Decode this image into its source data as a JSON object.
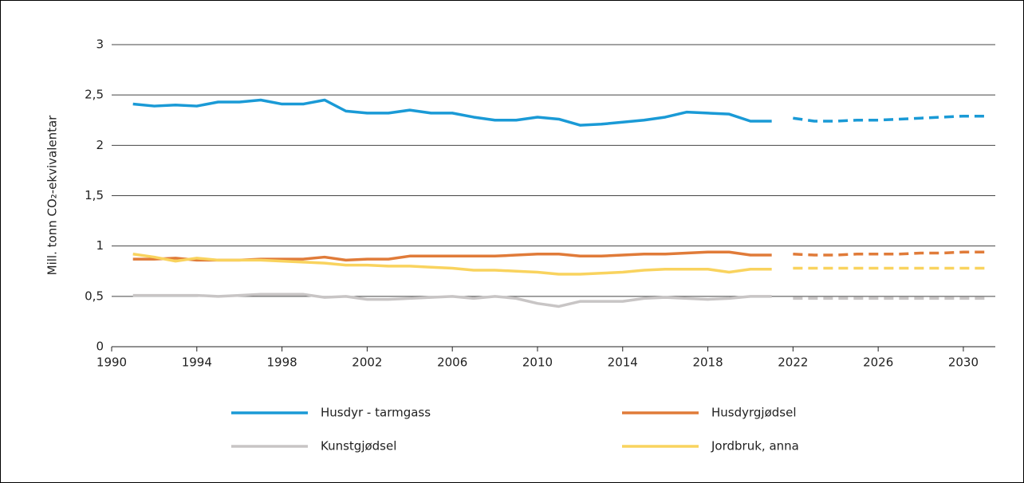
{
  "chart_data": {
    "type": "line",
    "ylabel": "Mill. tonn CO₂-ekvivalentar",
    "x": [
      1991,
      1992,
      1993,
      1994,
      1995,
      1996,
      1997,
      1998,
      1999,
      2000,
      2001,
      2002,
      2003,
      2004,
      2005,
      2006,
      2007,
      2008,
      2009,
      2010,
      2011,
      2012,
      2013,
      2014,
      2015,
      2016,
      2017,
      2018,
      2019,
      2020,
      2021,
      2022,
      2023,
      2024,
      2025,
      2026,
      2027,
      2028,
      2029,
      2030,
      2031
    ],
    "xlim": [
      1990,
      2031.5
    ],
    "xticks": [
      1990,
      1994,
      1998,
      2002,
      2006,
      2010,
      2014,
      2018,
      2022,
      2026,
      2030
    ],
    "ylim": [
      0,
      3
    ],
    "yticks": [
      0,
      {
        "value": 0.5,
        "label": "0,5"
      },
      1,
      {
        "value": 1.5,
        "label": "1,5"
      },
      2,
      {
        "value": 2.5,
        "label": "2,5"
      },
      3
    ],
    "grid": true,
    "legend": "bottom",
    "series": [
      {
        "name": "Husdyr - tarmgass",
        "color": "#1a9ad6",
        "values": [
          2.41,
          2.39,
          2.4,
          2.39,
          2.43,
          2.43,
          2.45,
          2.41,
          2.41,
          2.45,
          2.34,
          2.32,
          2.32,
          2.35,
          2.32,
          2.32,
          2.28,
          2.25,
          2.25,
          2.28,
          2.26,
          2.2,
          2.21,
          2.23,
          2.25,
          2.28,
          2.33,
          2.32,
          2.31,
          2.24,
          2.24,
          null,
          null,
          null,
          null,
          null,
          null,
          null,
          null,
          null,
          null
        ],
        "projected_values": [
          null,
          null,
          null,
          null,
          null,
          null,
          null,
          null,
          null,
          null,
          null,
          null,
          null,
          null,
          null,
          null,
          null,
          null,
          null,
          null,
          null,
          null,
          null,
          null,
          null,
          null,
          null,
          null,
          null,
          null,
          null,
          2.27,
          2.24,
          2.24,
          2.25,
          2.25,
          2.26,
          2.27,
          2.28,
          2.29,
          2.29
        ]
      },
      {
        "name": "Husdyrgjødsel",
        "color": "#e07b39",
        "values": [
          0.87,
          0.87,
          0.88,
          0.86,
          0.86,
          0.86,
          0.87,
          0.87,
          0.87,
          0.89,
          0.86,
          0.87,
          0.87,
          0.9,
          0.9,
          0.9,
          0.9,
          0.9,
          0.91,
          0.92,
          0.92,
          0.9,
          0.9,
          0.91,
          0.92,
          0.92,
          0.93,
          0.94,
          0.94,
          0.91,
          0.91,
          null,
          null,
          null,
          null,
          null,
          null,
          null,
          null,
          null,
          null
        ],
        "projected_values": [
          null,
          null,
          null,
          null,
          null,
          null,
          null,
          null,
          null,
          null,
          null,
          null,
          null,
          null,
          null,
          null,
          null,
          null,
          null,
          null,
          null,
          null,
          null,
          null,
          null,
          null,
          null,
          null,
          null,
          null,
          null,
          0.92,
          0.91,
          0.91,
          0.92,
          0.92,
          0.92,
          0.93,
          0.93,
          0.94,
          0.94
        ]
      },
      {
        "name": "Kunstgjødsel",
        "color": "#c8c5c5",
        "values": [
          0.51,
          0.51,
          0.51,
          0.51,
          0.5,
          0.51,
          0.52,
          0.52,
          0.52,
          0.49,
          0.5,
          0.47,
          0.47,
          0.48,
          0.49,
          0.5,
          0.48,
          0.5,
          0.48,
          0.43,
          0.4,
          0.45,
          0.45,
          0.45,
          0.48,
          0.49,
          0.48,
          0.47,
          0.48,
          0.5,
          0.5,
          null,
          null,
          null,
          null,
          null,
          null,
          null,
          null,
          null,
          null
        ],
        "projected_values": [
          null,
          null,
          null,
          null,
          null,
          null,
          null,
          null,
          null,
          null,
          null,
          null,
          null,
          null,
          null,
          null,
          null,
          null,
          null,
          null,
          null,
          null,
          null,
          null,
          null,
          null,
          null,
          null,
          null,
          null,
          null,
          0.48,
          0.48,
          0.48,
          0.48,
          0.48,
          0.48,
          0.48,
          0.48,
          0.48,
          0.48
        ]
      },
      {
        "name": "Jordbruk, anna",
        "color": "#f9d35e",
        "values": [
          0.92,
          0.89,
          0.85,
          0.88,
          0.86,
          0.86,
          0.86,
          0.85,
          0.84,
          0.83,
          0.81,
          0.81,
          0.8,
          0.8,
          0.79,
          0.78,
          0.76,
          0.76,
          0.75,
          0.74,
          0.72,
          0.72,
          0.73,
          0.74,
          0.76,
          0.77,
          0.77,
          0.77,
          0.74,
          0.77,
          0.77,
          null,
          null,
          null,
          null,
          null,
          null,
          null,
          null,
          null,
          null
        ],
        "projected_values": [
          null,
          null,
          null,
          null,
          null,
          null,
          null,
          null,
          null,
          null,
          null,
          null,
          null,
          null,
          null,
          null,
          null,
          null,
          null,
          null,
          null,
          null,
          null,
          null,
          null,
          null,
          null,
          null,
          null,
          null,
          null,
          0.78,
          0.78,
          0.78,
          0.78,
          0.78,
          0.78,
          0.78,
          0.78,
          0.78,
          0.78
        ]
      }
    ]
  }
}
